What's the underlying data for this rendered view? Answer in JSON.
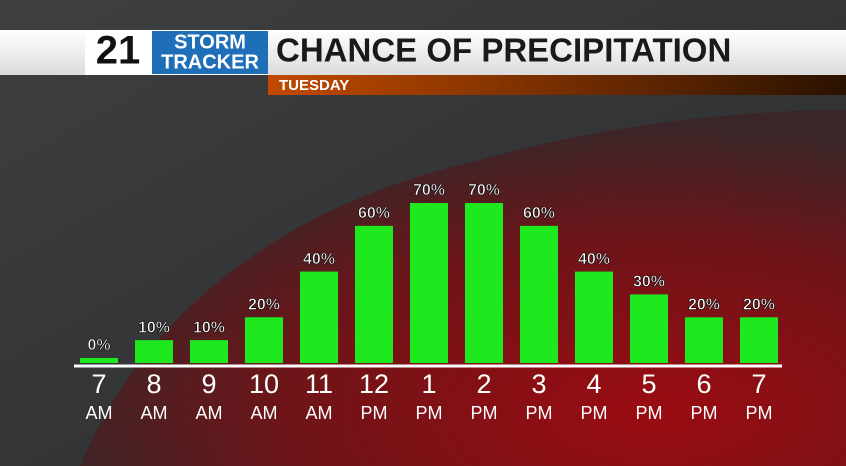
{
  "brand": {
    "number": "21",
    "line1": "STORM",
    "line2": "TRACKER"
  },
  "chart_data": {
    "type": "bar",
    "title": "CHANCE OF PRECIPITATION",
    "subtitle": "TUESDAY",
    "categories": [
      [
        "7",
        "AM"
      ],
      [
        "8",
        "AM"
      ],
      [
        "9",
        "AM"
      ],
      [
        "10",
        "AM"
      ],
      [
        "11",
        "AM"
      ],
      [
        "12",
        "PM"
      ],
      [
        "1",
        "PM"
      ],
      [
        "2",
        "PM"
      ],
      [
        "3",
        "PM"
      ],
      [
        "4",
        "PM"
      ],
      [
        "5",
        "PM"
      ],
      [
        "6",
        "PM"
      ],
      [
        "7",
        "PM"
      ]
    ],
    "values": [
      0,
      10,
      10,
      20,
      40,
      60,
      70,
      70,
      60,
      40,
      30,
      20,
      20
    ],
    "value_labels": [
      "0%",
      "10%",
      "10%",
      "20%",
      "40%",
      "60%",
      "70%",
      "70%",
      "60%",
      "40%",
      "30%",
      "20%",
      "20%"
    ],
    "color": "#1ee81e"
  }
}
